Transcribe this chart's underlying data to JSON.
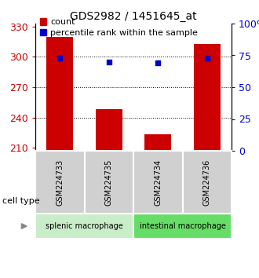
{
  "title": "GDS2982 / 1451645_at",
  "samples": [
    "GSM224733",
    "GSM224735",
    "GSM224734",
    "GSM224736"
  ],
  "bar_values": [
    320,
    248,
    223,
    313
  ],
  "percentile_values": [
    73,
    70,
    69,
    73
  ],
  "bar_color": "#cc0000",
  "percentile_color": "#0000cc",
  "ylim_left": [
    207,
    333
  ],
  "ylim_right": [
    0,
    100
  ],
  "yticks_left": [
    210,
    240,
    270,
    300,
    330
  ],
  "yticks_right": [
    0,
    25,
    50,
    75,
    100
  ],
  "ytick_right_labels": [
    "0",
    "25",
    "50",
    "75",
    "100%"
  ],
  "grid_values": [
    240,
    270,
    300
  ],
  "group1_label": "splenic macrophage",
  "group2_label": "intestinal macrophage",
  "group1_color": "#c8edc8",
  "group2_color": "#66dd66",
  "cell_type_label": "cell type",
  "legend_count_label": "count",
  "legend_pct_label": "percentile rank within the sample",
  "left_tick_color": "#cc0000",
  "right_tick_color": "#0000cc",
  "bar_bottom": 207,
  "bar_width": 0.55,
  "sample_box_color": "#d0d0d0",
  "title_fontsize": 10,
  "tick_fontsize": 9,
  "label_fontsize": 7,
  "legend_fontsize": 8
}
